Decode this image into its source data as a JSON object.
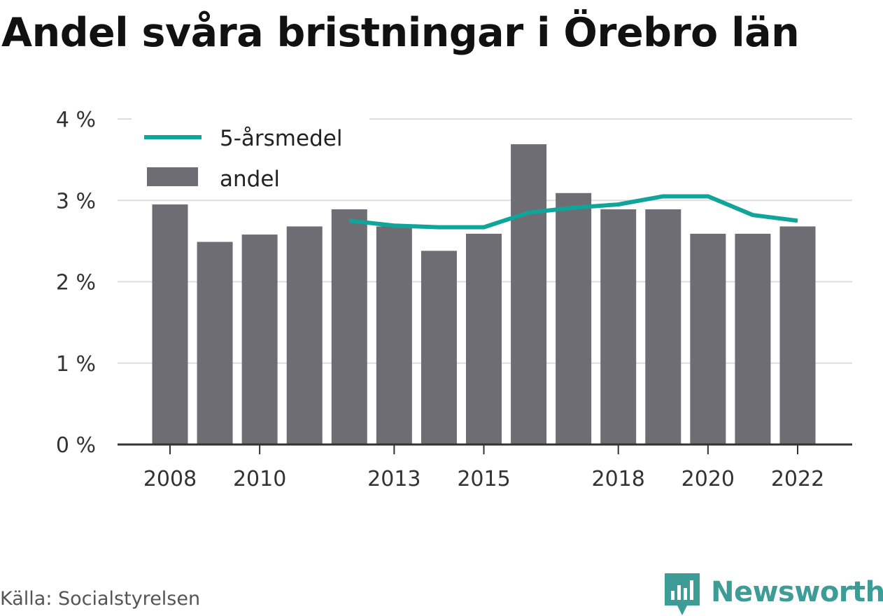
{
  "title": "Andel svåra bristningar i Örebro län",
  "source": "Källa: Socialstyrelsen",
  "brand": "Newsworthy",
  "colors": {
    "bar": "#6e6d73",
    "line": "#11a49a",
    "grid": "#dddddd",
    "axis": "#333333",
    "brand": "#3d9c95"
  },
  "chart_data": {
    "type": "bar",
    "x": [
      2008,
      2009,
      2010,
      2011,
      2012,
      2013,
      2014,
      2015,
      2016,
      2017,
      2018,
      2019,
      2020,
      2021,
      2022
    ],
    "x_tick_labels": [
      "2008",
      "2010",
      "2013",
      "2015",
      "2018",
      "2020",
      "2022"
    ],
    "y_tick_labels": [
      "0 %",
      "1 %",
      "2 %",
      "3 %",
      "4 %"
    ],
    "ylim": [
      0,
      4
    ],
    "grid": true,
    "legend_position": "top-left",
    "series": [
      {
        "name": "andel",
        "type": "bar",
        "values": [
          2.95,
          2.49,
          2.58,
          2.68,
          2.89,
          2.68,
          2.38,
          2.59,
          3.69,
          3.09,
          2.89,
          2.89,
          2.59,
          2.59,
          2.68
        ]
      },
      {
        "name": "5-årsmedel",
        "type": "line",
        "values": [
          null,
          null,
          null,
          null,
          2.75,
          2.69,
          2.67,
          2.67,
          2.85,
          2.91,
          2.95,
          3.05,
          3.05,
          2.82,
          2.75
        ]
      }
    ]
  }
}
